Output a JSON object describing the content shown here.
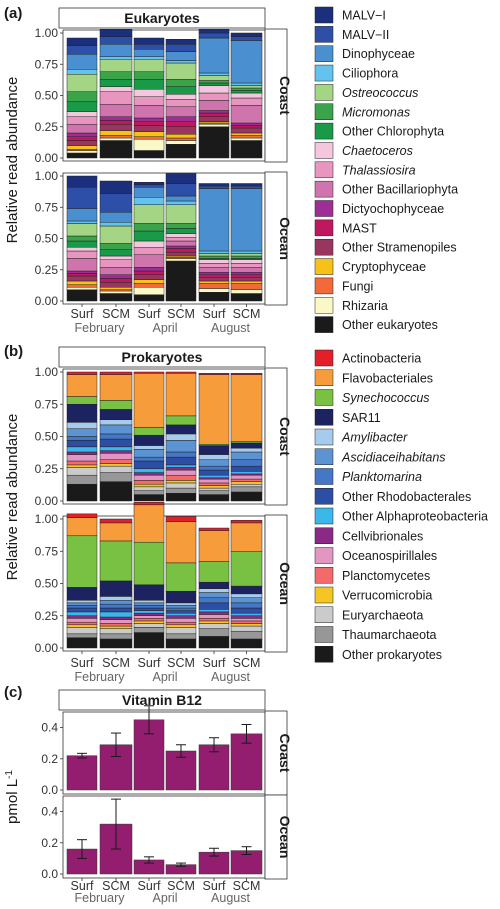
{
  "chart_data": [
    {
      "panel": "(a)",
      "type": "bar",
      "stacked": true,
      "title": "Eukaryotes",
      "ylabel": "Relative read abundance",
      "ylim": [
        0,
        1
      ],
      "yticks": [
        "0.00",
        "0.25",
        "0.50",
        "0.75",
        "1.00"
      ],
      "categories": [
        "Surf",
        "SCM",
        "Surf",
        "SCM",
        "Surf",
        "SCM"
      ],
      "groups": [
        "February",
        "April",
        "August"
      ],
      "facets": [
        "Coast",
        "Ocean"
      ],
      "legend_position": "right",
      "series": [
        {
          "name": "MALV−I",
          "color": "#1b2f7c",
          "italic": false,
          "values": {
            "Coast": [
              0.06,
              0.06,
              0.05,
              0.04,
              0.03,
              0.03
            ],
            "Ocean": [
              0.09,
              0.1,
              0.02,
              0.08,
              0.02,
              0.02
            ]
          }
        },
        {
          "name": "MALV−II",
          "color": "#2e4fa8",
          "italic": false,
          "values": {
            "Coast": [
              0.07,
              0.06,
              0.04,
              0.06,
              0.04,
              0.03
            ],
            "Ocean": [
              0.17,
              0.15,
              0.02,
              0.1,
              0.02,
              0.02
            ]
          }
        },
        {
          "name": "Dinophyceae",
          "color": "#4a8fd0",
          "italic": false,
          "values": {
            "Coast": [
              0.12,
              0.1,
              0.06,
              0.07,
              0.28,
              0.34
            ],
            "Ocean": [
              0.1,
              0.08,
              0.08,
              0.04,
              0.5,
              0.5
            ]
          }
        },
        {
          "name": "Ciliophora",
          "color": "#63c3ee",
          "italic": false,
          "values": {
            "Coast": [
              0.04,
              0.02,
              0.02,
              0.02,
              0.02,
              0.02
            ],
            "Ocean": [
              0.02,
              0.03,
              0.06,
              0.03,
              0.02,
              0.02
            ]
          }
        },
        {
          "name": "Ostreococcus",
          "color": "#a3d585",
          "italic": true,
          "values": {
            "Coast": [
              0.14,
              0.1,
              0.1,
              0.13,
              0.04,
              0.02
            ],
            "Ocean": [
              0.1,
              0.14,
              0.15,
              0.15,
              0.02,
              0.02
            ]
          }
        },
        {
          "name": "Micromonas",
          "color": "#3ba34a",
          "italic": true,
          "values": {
            "Coast": [
              0.08,
              0.06,
              0.06,
              0.06,
              0.02,
              0.02
            ],
            "Ocean": [
              0.04,
              0.05,
              0.06,
              0.04,
              0.02,
              0.02
            ]
          }
        },
        {
          "name": "Other Chlorophyta",
          "color": "#199a48",
          "italic": false,
          "values": {
            "Coast": [
              0.08,
              0.06,
              0.08,
              0.06,
              0.02,
              0.02
            ],
            "Ocean": [
              0.05,
              0.05,
              0.08,
              0.04,
              0.01,
              0.01
            ]
          }
        },
        {
          "name": "Chaetoceros",
          "color": "#f5c7df",
          "italic": true,
          "values": {
            "Coast": [
              0.04,
              0.04,
              0.06,
              0.04,
              0.06,
              0.04
            ],
            "Ocean": [
              0.03,
              0.03,
              0.05,
              0.03,
              0.03,
              0.03
            ]
          }
        },
        {
          "name": "Thalassiosira",
          "color": "#e896c0",
          "italic": true,
          "values": {
            "Coast": [
              0.06,
              0.1,
              0.07,
              0.06,
              0.06,
              0.06
            ],
            "Ocean": [
              0.06,
              0.06,
              0.06,
              0.03,
              0.03,
              0.03
            ]
          }
        },
        {
          "name": "Other Bacillariophyta",
          "color": "#d074ad",
          "italic": false,
          "values": {
            "Coast": [
              0.07,
              0.1,
              0.1,
              0.08,
              0.08,
              0.14
            ],
            "Ocean": [
              0.1,
              0.06,
              0.1,
              0.04,
              0.04,
              0.04
            ]
          }
        },
        {
          "name": "Dictyochophyceae",
          "color": "#9f2d96",
          "italic": false,
          "values": {
            "Coast": [
              0.03,
              0.03,
              0.03,
              0.04,
              0.02,
              0.02
            ],
            "Ocean": [
              0.02,
              0.03,
              0.03,
              0.02,
              0.02,
              0.02
            ]
          }
        },
        {
          "name": "MAST",
          "color": "#c0175f",
          "italic": false,
          "values": {
            "Coast": [
              0.03,
              0.03,
              0.03,
              0.04,
              0.03,
              0.02
            ],
            "Ocean": [
              0.02,
              0.03,
              0.03,
              0.03,
              0.02,
              0.02
            ]
          }
        },
        {
          "name": "Other Stramenopiles",
          "color": "#9a3560",
          "italic": false,
          "values": {
            "Coast": [
              0.04,
              0.05,
              0.05,
              0.06,
              0.04,
              0.04
            ],
            "Ocean": [
              0.04,
              0.04,
              0.04,
              0.03,
              0.03,
              0.03
            ]
          }
        },
        {
          "name": "Cryptophyceae",
          "color": "#f6c21a",
          "italic": false,
          "values": {
            "Coast": [
              0.03,
              0.04,
              0.04,
              0.03,
              0.01,
              0.02
            ],
            "Ocean": [
              0.03,
              0.02,
              0.03,
              0.01,
              0.02,
              0.02
            ]
          }
        },
        {
          "name": "Fungi",
          "color": "#f36a3a",
          "italic": false,
          "values": {
            "Coast": [
              0.01,
              0.02,
              0.02,
              0.02,
              0.01,
              0.02
            ],
            "Ocean": [
              0.02,
              0.01,
              0.03,
              0.01,
              0.04,
              0.05
            ]
          }
        },
        {
          "name": "Rhizaria",
          "color": "#fbf8c8",
          "italic": false,
          "values": {
            "Coast": [
              0.02,
              0.02,
              0.09,
              0.03,
              0.02,
              0.02
            ],
            "Ocean": [
              0.02,
              0.02,
              0.06,
              0.02,
              0.03,
              0.03
            ]
          }
        },
        {
          "name": "Other eukaryotes",
          "color": "#1a1a1a",
          "italic": false,
          "values": {
            "Coast": [
              0.04,
              0.14,
              0.06,
              0.11,
              0.25,
              0.14
            ],
            "Ocean": [
              0.09,
              0.06,
              0.05,
              0.32,
              0.07,
              0.06
            ]
          }
        }
      ]
    },
    {
      "panel": "(b)",
      "type": "bar",
      "stacked": true,
      "title": "Prokaryotes",
      "ylabel": "Relative read abundance",
      "ylim": [
        0,
        1
      ],
      "yticks": [
        "0.00",
        "0.25",
        "0.50",
        "0.75",
        "1.00"
      ],
      "categories": [
        "Surf",
        "SCM",
        "Surf",
        "SCM",
        "Surf",
        "SCM"
      ],
      "groups": [
        "February",
        "April",
        "August"
      ],
      "facets": [
        "Coast",
        "Ocean"
      ],
      "legend_position": "right",
      "series": [
        {
          "name": "Actinobacteria",
          "color": "#e3202a",
          "italic": false,
          "values": {
            "Coast": [
              0.02,
              0.02,
              0.01,
              0.01,
              0.01,
              0.01
            ],
            "Ocean": [
              0.03,
              0.03,
              0.02,
              0.04,
              0.02,
              0.02
            ]
          }
        },
        {
          "name": "Flavobacteriales",
          "color": "#f79c3a",
          "italic": false,
          "values": {
            "Coast": [
              0.17,
              0.2,
              0.42,
              0.33,
              0.54,
              0.52
            ],
            "Ocean": [
              0.14,
              0.14,
              0.29,
              0.32,
              0.24,
              0.22
            ]
          }
        },
        {
          "name": "Synechococcus",
          "color": "#79c142",
          "italic": true,
          "values": {
            "Coast": [
              0.06,
              0.07,
              0.06,
              0.07,
              0.01,
              0.01
            ],
            "Ocean": [
              0.4,
              0.31,
              0.33,
              0.22,
              0.16,
              0.27
            ]
          }
        },
        {
          "name": "SAR11",
          "color": "#1d2260",
          "italic": false,
          "values": {
            "Coast": [
              0.14,
              0.08,
              0.08,
              0.07,
              0.07,
              0.04
            ],
            "Ocean": [
              0.1,
              0.12,
              0.12,
              0.09,
              0.05,
              0.06
            ]
          }
        },
        {
          "name": "Amylibacter",
          "color": "#a6cbec",
          "italic": true,
          "values": {
            "Coast": [
              0.05,
              0.04,
              0.03,
              0.05,
              0.04,
              0.03
            ],
            "Ocean": [
              0.02,
              0.03,
              0.02,
              0.02,
              0.03,
              0.03
            ]
          }
        },
        {
          "name": "Ascidiaceihabitans",
          "color": "#5c94d3",
          "italic": true,
          "values": {
            "Coast": [
              0.06,
              0.07,
              0.06,
              0.09,
              0.05,
              0.06
            ],
            "Ocean": [
              0.02,
              0.03,
              0.02,
              0.02,
              0.04,
              0.04
            ]
          }
        },
        {
          "name": "Planktomarina",
          "color": "#4477c5",
          "italic": true,
          "values": {
            "Coast": [
              0.03,
              0.04,
              0.03,
              0.04,
              0.03,
              0.05
            ],
            "Ocean": [
              0.02,
              0.03,
              0.02,
              0.02,
              0.04,
              0.04
            ]
          }
        },
        {
          "name": "Other Rhodobacterales",
          "color": "#2c4ea4",
          "italic": false,
          "values": {
            "Coast": [
              0.05,
              0.06,
              0.06,
              0.06,
              0.04,
              0.04
            ],
            "Ocean": [
              0.03,
              0.03,
              0.02,
              0.02,
              0.05,
              0.04
            ]
          }
        },
        {
          "name": "Other Alphaproteobacteria",
          "color": "#3cb7ea",
          "italic": false,
          "values": {
            "Coast": [
              0.04,
              0.03,
              0.03,
              0.02,
              0.02,
              0.02
            ],
            "Ocean": [
              0.03,
              0.04,
              0.02,
              0.02,
              0.02,
              0.02
            ]
          }
        },
        {
          "name": "Cellvibrionales",
          "color": "#8b2a86",
          "italic": false,
          "values": {
            "Coast": [
              0.02,
              0.02,
              0.02,
              0.02,
              0.01,
              0.01
            ],
            "Ocean": [
              0.02,
              0.02,
              0.02,
              0.02,
              0.02,
              0.02
            ]
          }
        },
        {
          "name": "Oceanospirillales",
          "color": "#e296c2",
          "italic": false,
          "values": {
            "Coast": [
              0.05,
              0.05,
              0.04,
              0.04,
              0.03,
              0.03
            ],
            "Ocean": [
              0.03,
              0.03,
              0.02,
              0.03,
              0.03,
              0.02
            ]
          }
        },
        {
          "name": "Planctomycetes",
          "color": "#f36a6a",
          "italic": false,
          "values": {
            "Coast": [
              0.03,
              0.03,
              0.03,
              0.04,
              0.02,
              0.02
            ],
            "Ocean": [
              0.02,
              0.02,
              0.02,
              0.02,
              0.02,
              0.02
            ]
          }
        },
        {
          "name": "Verrucomicrobia",
          "color": "#f5c523",
          "italic": false,
          "values": {
            "Coast": [
              0.02,
              0.02,
              0.02,
              0.02,
              0.02,
              0.02
            ],
            "Ocean": [
              0.02,
              0.02,
              0.02,
              0.02,
              0.02,
              0.02
            ]
          }
        },
        {
          "name": "Euryarchaeota",
          "color": "#cbcbcb",
          "italic": false,
          "values": {
            "Coast": [
              0.06,
              0.05,
              0.03,
              0.04,
              0.02,
              0.02
            ],
            "Ocean": [
              0.05,
              0.04,
              0.03,
              0.05,
              0.04,
              0.04
            ]
          }
        },
        {
          "name": "Thaumarchaeota",
          "color": "#979797",
          "italic": false,
          "values": {
            "Coast": [
              0.07,
              0.07,
              0.03,
              0.04,
              0.03,
              0.04
            ],
            "Ocean": [
              0.03,
              0.04,
              0.04,
              0.04,
              0.06,
              0.06
            ]
          }
        },
        {
          "name": "Other prokaryotes",
          "color": "#1a1a1a",
          "italic": false,
          "values": {
            "Coast": [
              0.13,
              0.15,
              0.05,
              0.06,
              0.05,
              0.07
            ],
            "Ocean": [
              0.08,
              0.07,
              0.12,
              0.07,
              0.09,
              0.07
            ]
          }
        }
      ]
    },
    {
      "panel": "(c)",
      "type": "bar",
      "title": "Vitamin B12",
      "ylabel": "pmol L",
      "ylabel_superscript": "-1",
      "ylim": [
        0,
        0.5
      ],
      "yticks": [
        "0.0",
        "0.2",
        "0.4"
      ],
      "categories": [
        "Surf",
        "SCM",
        "Surf",
        "SCM",
        "Surf",
        "SCM"
      ],
      "groups": [
        "February",
        "April",
        "August"
      ],
      "facets": [
        "Coast",
        "Ocean"
      ],
      "bar_color": "#931e6f",
      "values": {
        "Coast": [
          0.22,
          0.29,
          0.45,
          0.25,
          0.29,
          0.36
        ],
        "Ocean": [
          0.16,
          0.32,
          0.09,
          0.06,
          0.14,
          0.15
        ]
      },
      "errors": {
        "Coast": [
          0.015,
          0.075,
          0.09,
          0.04,
          0.045,
          0.06
        ],
        "Ocean": [
          0.06,
          0.16,
          0.02,
          0.01,
          0.025,
          0.025
        ]
      }
    }
  ]
}
